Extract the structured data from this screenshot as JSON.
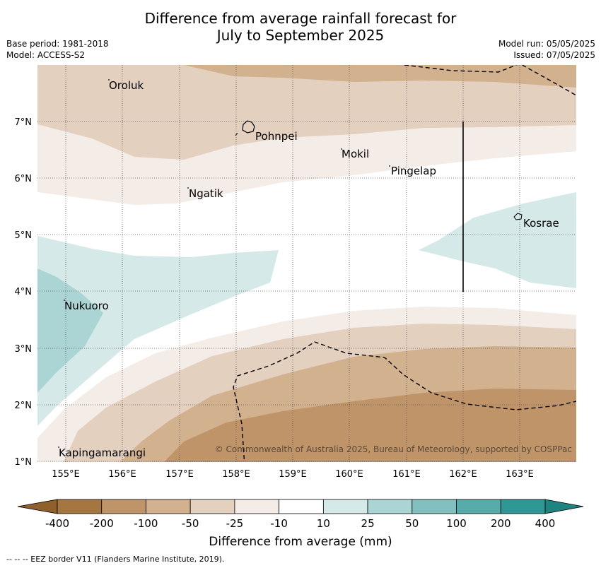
{
  "title_line1": "Difference from average rainfall forecast for",
  "title_line2": "July to September 2025",
  "base_period": "Base period: 1981-2018",
  "model": "Model: ACCESS-S2",
  "model_run": "Model run: 05/05/2025",
  "issued": "Issued: 07/05/2025",
  "copyright": "© Commonwealth of Australia 2025, Bureau of Meteorology, supported by COSPPac",
  "footer": "--  --  -- EEZ border V11 (Flanders Marine Institute, 2019).",
  "lon_labels": [
    "155°E",
    "156°E",
    "157°E",
    "158°E",
    "159°E",
    "160°E",
    "161°E",
    "162°E",
    "163°E"
  ],
  "lat_labels": [
    "1°N",
    "2°N",
    "3°N",
    "4°N",
    "5°N",
    "6°N",
    "7°N"
  ],
  "places": [
    "Oroluk",
    "Pohnpei",
    "Mokil",
    "Pingelap",
    "Ngatik",
    "Kosrae",
    "Nukuoro",
    "Kapingamarangi"
  ],
  "legend": {
    "title": "Difference from average (mm)",
    "ticks": [
      "-400",
      "-200",
      "-100",
      "-50",
      "-25",
      "-10",
      "10",
      "25",
      "50",
      "100",
      "200",
      "400"
    ],
    "colors": [
      "#a67640",
      "#bf9468",
      "#d2b18f",
      "#e3d0bf",
      "#f4ece6",
      "#ffffff",
      "#d5e9e8",
      "#abd5d4",
      "#82c0bf",
      "#57aba9",
      "#2f9794"
    ],
    "low_color": "#8f5f2c",
    "high_color": "#1f8480"
  }
}
